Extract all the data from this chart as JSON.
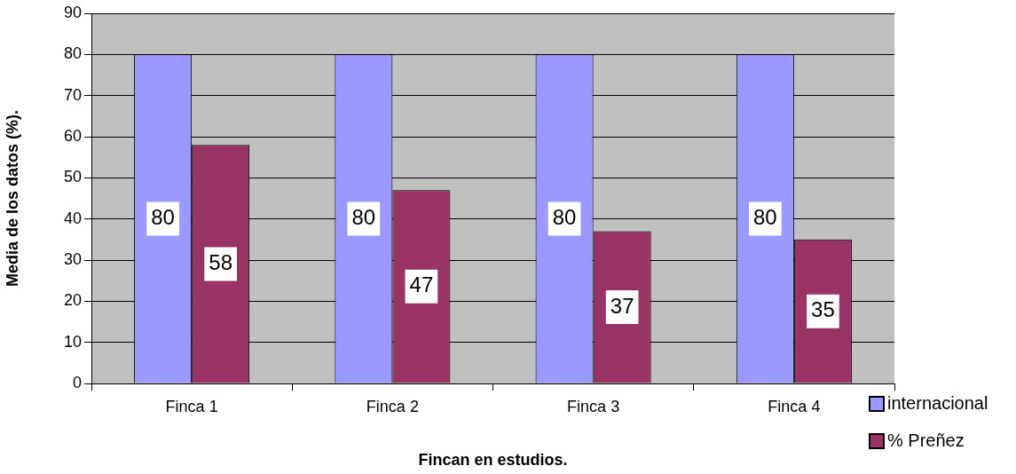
{
  "chart_data": {
    "type": "bar",
    "xlabel": "Fincan en estudios.",
    "ylabel": "Media de los datos (%).",
    "categories": [
      "Finca 1",
      "Finca 2",
      "Finca 3",
      "Finca 4"
    ],
    "series": [
      {
        "name": "internacional",
        "color": "#9999ff",
        "values": [
          80,
          80,
          80,
          80
        ]
      },
      {
        "name": "% Preñez",
        "color": "#993366",
        "values": [
          58,
          47,
          37,
          35
        ]
      }
    ],
    "ylim": [
      0,
      90
    ],
    "yticks": [
      0,
      10,
      20,
      30,
      40,
      50,
      60,
      70,
      80,
      90
    ],
    "grid": "y",
    "legend": "bottom right",
    "data_labels": true
  }
}
